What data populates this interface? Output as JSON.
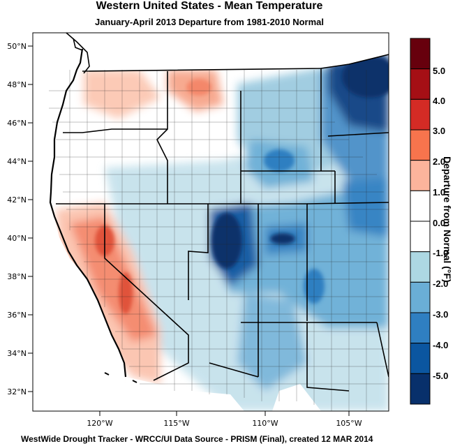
{
  "title": "Western United States - Mean Temperature",
  "subtitle": "January-April 2013  Departure from 1981-2010 Normal",
  "credits": "WestWide Drought Tracker - WRCC/UI  Data Source - PRISM (Final), created 12 MAR 2014",
  "lat_labels": [
    "50°N",
    "48°N",
    "46°N",
    "44°N",
    "42°N",
    "40°N",
    "38°N",
    "36°N",
    "34°N",
    "32°N"
  ],
  "lon_labels": [
    "120°W",
    "115°W",
    "110°W",
    "105°W"
  ],
  "colorbar": {
    "title": "Departure from Normal (°F)",
    "labels": [
      "5.0",
      "4.0",
      "3.0",
      "2.0",
      "1.0",
      "0.0",
      "-1.0",
      "-2.0",
      "-3.0",
      "-4.0",
      "-5.0"
    ],
    "colors": [
      "#67000d",
      "#a50f15",
      "#d42b25",
      "#f7744d",
      "#fcb49c",
      "#ffffff",
      "#ffffff",
      "#add8e3",
      "#6aaed6",
      "#2f7fc1",
      "#0b56a0",
      "#08306b"
    ]
  }
}
